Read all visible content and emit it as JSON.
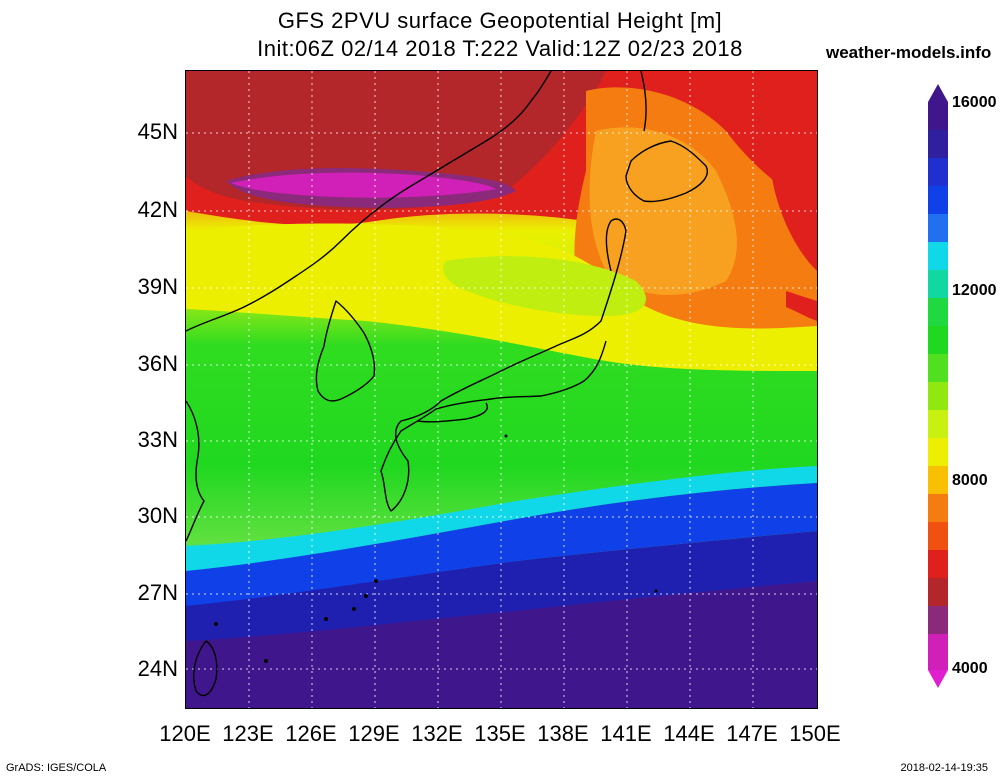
{
  "title_line1": "GFS 2PVU surface Geopotential Height [m]",
  "title_line2": "Init:06Z 02/14 2018 T:222 Valid:12Z 02/23 2018",
  "site": "weather-models.info",
  "lat_labels": [
    "45N",
    "42N",
    "39N",
    "36N",
    "33N",
    "30N",
    "27N",
    "24N"
  ],
  "lon_labels": [
    "120E",
    "123E",
    "126E",
    "129E",
    "132E",
    "135E",
    "138E",
    "141E",
    "144E",
    "147E",
    "150E"
  ],
  "colorbar_labels": [
    "16000",
    "12000",
    "8000",
    "4000"
  ],
  "footer_left": "GrADS: IGES/COLA",
  "footer_right": "2018-02-14-19:35",
  "palette": {
    "magenta": "#e020d0",
    "purple": "#8b2a7a",
    "darkred": "#b3262a",
    "red": "#e0201c",
    "orange": "#f57c10",
    "lightorange": "#f8a020",
    "yellow": "#ecf000",
    "yellowgreen": "#b8ee10",
    "green": "#20d820",
    "cyan": "#10d8e8",
    "blue": "#1040e8",
    "darkblue": "#2020b0",
    "indigo": "#40168c"
  }
}
